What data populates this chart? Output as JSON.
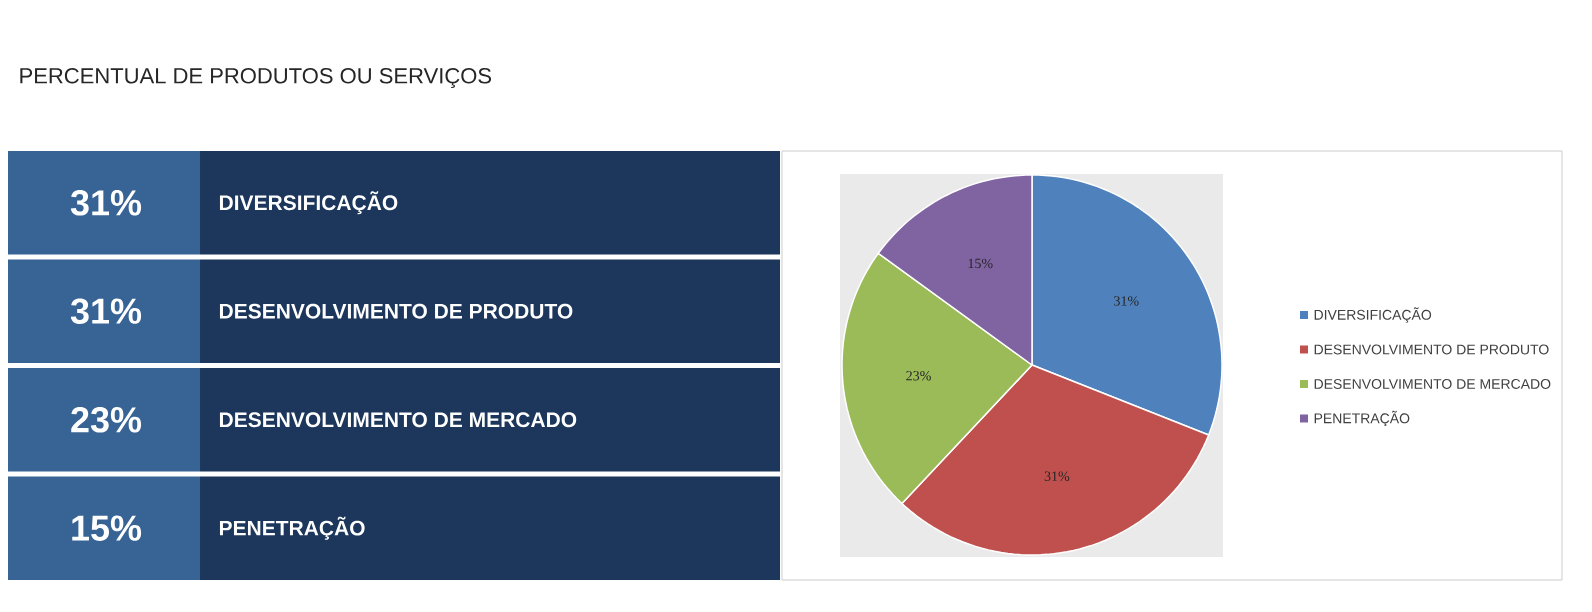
{
  "chart_data": {
    "type": "pie",
    "title": "PERCENTUAL DE PRODUTOS OU SERVIÇOS",
    "categories": [
      "DIVERSIFICAÇÃO",
      "DESENVOLVIMENTO DE PRODUTO",
      "DESENVOLVIMENTO DE MERCADO",
      "PENETRAÇÃO"
    ],
    "values": [
      31,
      31,
      23,
      15
    ],
    "colors": [
      "#4f81bd",
      "#c0504d",
      "#9bbb59",
      "#8064a2"
    ],
    "value_labels": [
      "31%",
      "31%",
      "23%",
      "15%"
    ],
    "legend": "right"
  }
}
